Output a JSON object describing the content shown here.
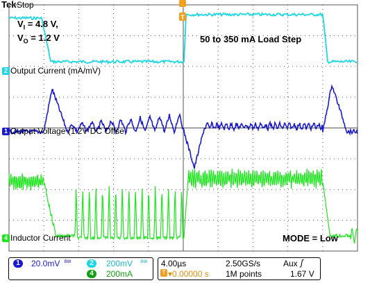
{
  "header": {
    "brand": "Tek",
    "status": "Stop"
  },
  "annotations": {
    "vi_main": "V",
    "vi_sub": "I",
    "vi_val": " = 4.8 V,",
    "vo_main": "V",
    "vo_sub": "O",
    "vo_val": " = 1.2 V",
    "load_step": "50 to 350 mA Load Step",
    "mode": "MODE = Low"
  },
  "channels": {
    "ch2": {
      "number": "2",
      "label": "Output Current (mA/mV)",
      "color": "#19d7e6"
    },
    "ch1": {
      "number": "1",
      "label": "Output Voltage (1.2V DC Offse",
      "color": "#1a1acc"
    },
    "ch4": {
      "number": "4",
      "label": "Inductor Current",
      "color": "#1ee61e"
    }
  },
  "markers": {
    "trigger": "T"
  },
  "scale_panel": {
    "ch1_scale": "20.0mV",
    "ch2_scale": "200mV",
    "ch4_scale": "200mA",
    "bw_icon": "bandwidth-limit-icon"
  },
  "time_panel": {
    "timebase": "4.00µs",
    "sample_rate": "2.50GS/s",
    "trigger_source": "Aux",
    "trigger_slope_icon": "rising-edge-icon",
    "trigger_position": "▾0.00000 s",
    "record_length": "1M points",
    "trigger_level": "1.67 V"
  }
}
